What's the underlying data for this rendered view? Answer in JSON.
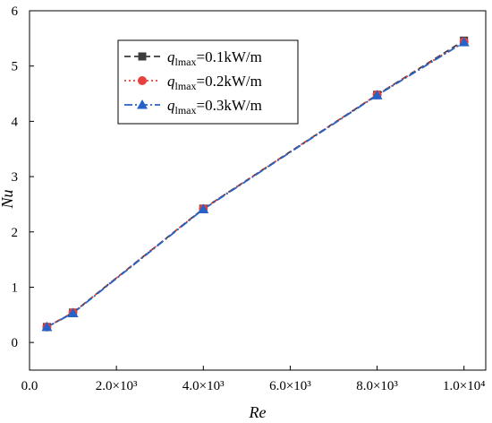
{
  "chart_data": {
    "type": "line",
    "xlabel": "Re",
    "ylabel": "Nu",
    "xlim": [
      0,
      10500
    ],
    "ylim": [
      -0.5,
      6
    ],
    "x_ticks": [
      {
        "value": 0,
        "label": "0.0"
      },
      {
        "value": 2000,
        "label": "2.0×10³"
      },
      {
        "value": 4000,
        "label": "4.0×10³"
      },
      {
        "value": 6000,
        "label": "6.0×10³"
      },
      {
        "value": 8000,
        "label": "8.0×10³"
      },
      {
        "value": 10000,
        "label": "1.0×10⁴"
      }
    ],
    "y_ticks": [
      {
        "value": 0,
        "label": "0"
      },
      {
        "value": 1,
        "label": "1"
      },
      {
        "value": 2,
        "label": "2"
      },
      {
        "value": 3,
        "label": "3"
      },
      {
        "value": 4,
        "label": "4"
      },
      {
        "value": 5,
        "label": "5"
      },
      {
        "value": 6,
        "label": "6"
      }
    ],
    "x": [
      400,
      1000,
      4000,
      8000,
      10000
    ],
    "series": [
      {
        "name_prefix": "q",
        "name_sub": "lmax",
        "name_suffix": "=0.1kW/m",
        "values": [
          0.28,
          0.54,
          2.42,
          4.48,
          5.46
        ],
        "color": "#3d3d3d",
        "marker": "square",
        "dash": "dash"
      },
      {
        "name_prefix": "q",
        "name_sub": "lmax",
        "name_suffix": "=0.2kW/m",
        "values": [
          0.28,
          0.54,
          2.42,
          4.48,
          5.44
        ],
        "color": "#e8413b",
        "marker": "circle",
        "dash": "dot"
      },
      {
        "name_prefix": "q",
        "name_sub": "lmax",
        "name_suffix": "=0.3kW/m",
        "values": [
          0.28,
          0.53,
          2.41,
          4.47,
          5.43
        ],
        "color": "#2563c9",
        "marker": "triangle",
        "dash": "dashdot"
      }
    ],
    "legend_position": "top-left",
    "grid": false
  }
}
